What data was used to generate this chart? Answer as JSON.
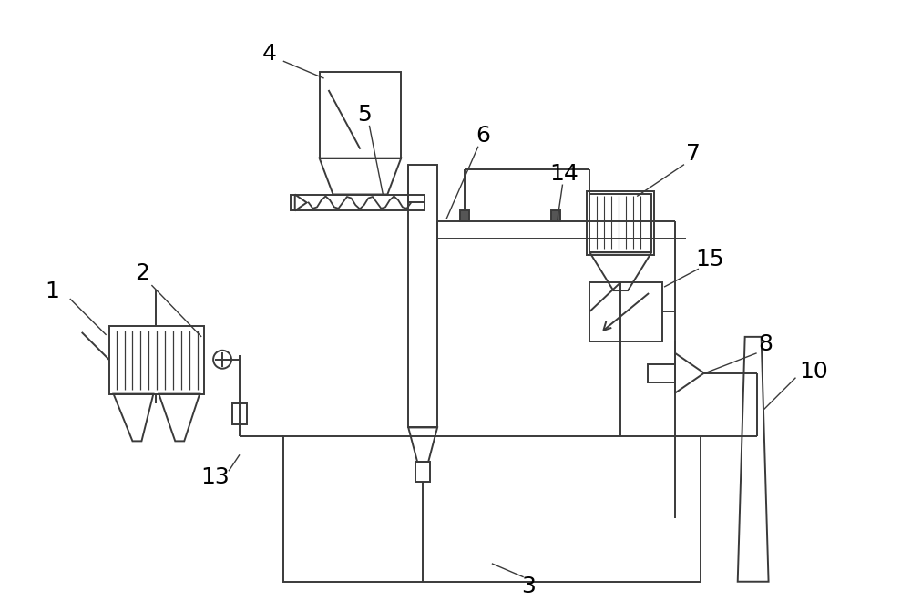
{
  "bg_color": "#ffffff",
  "lc": "#3a3a3a",
  "lw": 1.4,
  "figsize": [
    10.0,
    6.71
  ],
  "dpi": 100
}
